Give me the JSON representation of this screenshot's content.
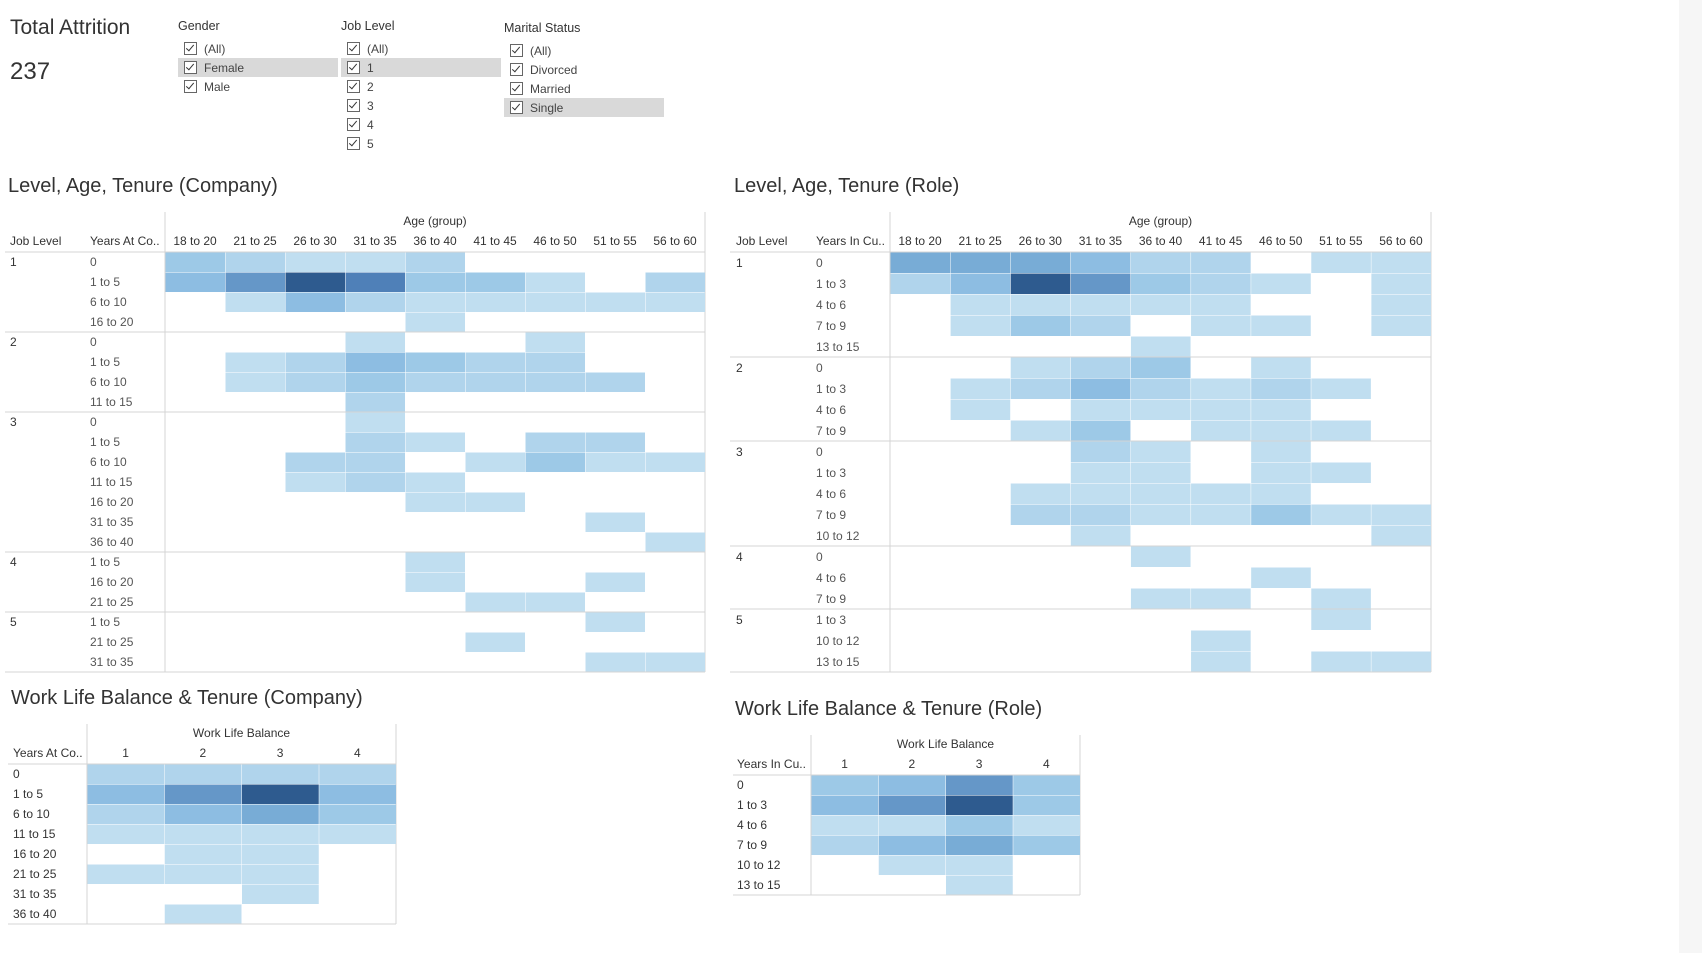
{
  "kpi": {
    "title": "Total Attrition",
    "value": "237"
  },
  "filters": {
    "gender": {
      "title": "Gender",
      "items": [
        {
          "label": "(All)",
          "highlighted": false
        },
        {
          "label": "Female",
          "highlighted": true
        },
        {
          "label": "Male",
          "highlighted": false
        }
      ]
    },
    "job_level": {
      "title": "Job Level",
      "items": [
        {
          "label": "(All)",
          "highlighted": false
        },
        {
          "label": "1",
          "highlighted": true
        },
        {
          "label": "2",
          "highlighted": false
        },
        {
          "label": "3",
          "highlighted": false
        },
        {
          "label": "4",
          "highlighted": false
        },
        {
          "label": "5",
          "highlighted": false
        }
      ]
    },
    "marital": {
      "title": "Marital Status",
      "items": [
        {
          "label": "(All)",
          "highlighted": false
        },
        {
          "label": "Divorced",
          "highlighted": false
        },
        {
          "label": "Married",
          "highlighted": false
        },
        {
          "label": "Single",
          "highlighted": true
        }
      ]
    }
  },
  "titles": {
    "company": "Level, Age, Tenure (Company)",
    "role": "Level, Age, Tenure (Role)",
    "wlb_company": "Work Life Balance & Tenure (Company)",
    "wlb_role": "Work Life Balance & Tenure (Role)"
  },
  "colors": {
    "scale": [
      "#c0def0",
      "#b0d4ec",
      "#9dc9e7",
      "#8dbde2",
      "#78acd6",
      "#6597c8",
      "#4f80b8",
      "#2e5b8f"
    ],
    "divider": "#d4d4d4"
  },
  "chart_data": [
    {
      "type": "heatmap",
      "title": "Level, Age, Tenure (Company)",
      "row_headers": [
        "Job Level",
        "Years At Co.."
      ],
      "col_header": "Age (group)",
      "columns": [
        "18 to 20",
        "21 to 25",
        "26 to 30",
        "31 to 35",
        "36 to 40",
        "41 to 45",
        "46 to 50",
        "51 to 55",
        "56 to 60"
      ],
      "groups": [
        {
          "label": "1",
          "rows": [
            {
              "label": "0",
              "values": [
                3,
                2,
                1,
                1,
                2,
                0,
                0,
                0,
                0
              ]
            },
            {
              "label": "1 to 5",
              "values": [
                4,
                6,
                8,
                7,
                3,
                3,
                1,
                0,
                2
              ]
            },
            {
              "label": "6 to 10",
              "values": [
                0,
                1,
                4,
                2,
                1,
                1,
                1,
                1,
                1
              ]
            },
            {
              "label": "16 to 20",
              "values": [
                0,
                0,
                0,
                0,
                1,
                0,
                0,
                0,
                0
              ]
            }
          ]
        },
        {
          "label": "2",
          "rows": [
            {
              "label": "0",
              "values": [
                0,
                0,
                0,
                1,
                0,
                0,
                1,
                0,
                0
              ]
            },
            {
              "label": "1 to 5",
              "values": [
                0,
                1,
                2,
                4,
                3,
                2,
                2,
                0,
                0
              ]
            },
            {
              "label": "6 to 10",
              "values": [
                0,
                1,
                2,
                3,
                2,
                2,
                2,
                2,
                0
              ]
            },
            {
              "label": "11 to 15",
              "values": [
                0,
                0,
                0,
                2,
                0,
                0,
                0,
                0,
                0
              ]
            }
          ]
        },
        {
          "label": "3",
          "rows": [
            {
              "label": "0",
              "values": [
                0,
                0,
                0,
                1,
                0,
                0,
                0,
                0,
                0
              ]
            },
            {
              "label": "1 to 5",
              "values": [
                0,
                0,
                0,
                2,
                1,
                0,
                2,
                2,
                0
              ]
            },
            {
              "label": "6 to 10",
              "values": [
                0,
                0,
                2,
                2,
                0,
                1,
                3,
                1,
                1
              ]
            },
            {
              "label": "11 to 15",
              "values": [
                0,
                0,
                1,
                2,
                1,
                0,
                0,
                0,
                0
              ]
            },
            {
              "label": "16 to 20",
              "values": [
                0,
                0,
                0,
                0,
                1,
                1,
                0,
                0,
                0
              ]
            },
            {
              "label": "31 to 35",
              "values": [
                0,
                0,
                0,
                0,
                0,
                0,
                0,
                1,
                0
              ]
            },
            {
              "label": "36 to 40",
              "values": [
                0,
                0,
                0,
                0,
                0,
                0,
                0,
                0,
                1
              ]
            }
          ]
        },
        {
          "label": "4",
          "rows": [
            {
              "label": "1 to 5",
              "values": [
                0,
                0,
                0,
                0,
                1,
                0,
                0,
                0,
                0
              ]
            },
            {
              "label": "16 to 20",
              "values": [
                0,
                0,
                0,
                0,
                1,
                0,
                0,
                1,
                0
              ]
            },
            {
              "label": "21 to 25",
              "values": [
                0,
                0,
                0,
                0,
                0,
                1,
                1,
                0,
                0
              ]
            }
          ]
        },
        {
          "label": "5",
          "rows": [
            {
              "label": "1 to 5",
              "values": [
                0,
                0,
                0,
                0,
                0,
                0,
                0,
                1,
                0
              ]
            },
            {
              "label": "21 to 25",
              "values": [
                0,
                0,
                0,
                0,
                0,
                1,
                0,
                0,
                0
              ]
            },
            {
              "label": "31 to 35",
              "values": [
                0,
                0,
                0,
                0,
                0,
                0,
                0,
                1,
                1
              ]
            }
          ]
        }
      ]
    },
    {
      "type": "heatmap",
      "title": "Level, Age, Tenure (Role)",
      "row_headers": [
        "Job Level",
        "Years In Cu.."
      ],
      "col_header": "Age (group)",
      "columns": [
        "18 to 20",
        "21 to 25",
        "26 to 30",
        "31 to 35",
        "36 to 40",
        "41 to 45",
        "46 to 50",
        "51 to 55",
        "56 to 60"
      ],
      "groups": [
        {
          "label": "1",
          "rows": [
            {
              "label": "0",
              "values": [
                5,
                5,
                5,
                4,
                2,
                2,
                0,
                1,
                1
              ]
            },
            {
              "label": "1 to 3",
              "values": [
                2,
                4,
                8,
                6,
                3,
                2,
                1,
                0,
                1
              ]
            },
            {
              "label": "4 to 6",
              "values": [
                0,
                1,
                1,
                1,
                1,
                1,
                0,
                0,
                1
              ]
            },
            {
              "label": "7 to 9",
              "values": [
                0,
                1,
                3,
                2,
                0,
                1,
                1,
                0,
                1
              ]
            },
            {
              "label": "13 to 15",
              "values": [
                0,
                0,
                0,
                0,
                1,
                0,
                0,
                0,
                0
              ]
            }
          ]
        },
        {
          "label": "2",
          "rows": [
            {
              "label": "0",
              "values": [
                0,
                0,
                1,
                2,
                3,
                0,
                1,
                0,
                0
              ]
            },
            {
              "label": "1 to 3",
              "values": [
                0,
                1,
                2,
                4,
                2,
                1,
                2,
                1,
                0
              ]
            },
            {
              "label": "4 to 6",
              "values": [
                0,
                1,
                0,
                1,
                1,
                1,
                1,
                0,
                0
              ]
            },
            {
              "label": "7 to 9",
              "values": [
                0,
                0,
                1,
                3,
                0,
                1,
                1,
                1,
                0
              ]
            }
          ]
        },
        {
          "label": "3",
          "rows": [
            {
              "label": "0",
              "values": [
                0,
                0,
                0,
                2,
                1,
                0,
                1,
                0,
                0
              ]
            },
            {
              "label": "1 to 3",
              "values": [
                0,
                0,
                0,
                1,
                1,
                0,
                1,
                1,
                0
              ]
            },
            {
              "label": "4 to 6",
              "values": [
                0,
                0,
                1,
                1,
                1,
                1,
                1,
                0,
                0
              ]
            },
            {
              "label": "7 to 9",
              "values": [
                0,
                0,
                2,
                2,
                1,
                1,
                3,
                1,
                1
              ]
            },
            {
              "label": "10 to 12",
              "values": [
                0,
                0,
                0,
                1,
                0,
                0,
                0,
                0,
                1
              ]
            }
          ]
        },
        {
          "label": "4",
          "rows": [
            {
              "label": "0",
              "values": [
                0,
                0,
                0,
                0,
                1,
                0,
                0,
                0,
                0
              ]
            },
            {
              "label": "4 to 6",
              "values": [
                0,
                0,
                0,
                0,
                0,
                0,
                1,
                0,
                0
              ]
            },
            {
              "label": "7 to 9",
              "values": [
                0,
                0,
                0,
                0,
                1,
                1,
                0,
                1,
                0
              ]
            }
          ]
        },
        {
          "label": "5",
          "rows": [
            {
              "label": "1 to 3",
              "values": [
                0,
                0,
                0,
                0,
                0,
                0,
                0,
                1,
                0
              ]
            },
            {
              "label": "10 to 12",
              "values": [
                0,
                0,
                0,
                0,
                0,
                1,
                0,
                0,
                0
              ]
            },
            {
              "label": "13 to 15",
              "values": [
                0,
                0,
                0,
                0,
                0,
                1,
                0,
                1,
                1
              ]
            }
          ]
        }
      ]
    },
    {
      "type": "heatmap",
      "title": "Work Life Balance & Tenure (Company)",
      "row_headers": [
        "Years At Co.."
      ],
      "col_header": "Work Life Balance",
      "columns": [
        "1",
        "2",
        "3",
        "4"
      ],
      "groups": [
        {
          "label": "",
          "rows": [
            {
              "label": "0",
              "values": [
                2,
                2,
                2,
                2
              ]
            },
            {
              "label": "1 to 5",
              "values": [
                4,
                6,
                8,
                4
              ]
            },
            {
              "label": "6 to 10",
              "values": [
                2,
                4,
                5,
                3
              ]
            },
            {
              "label": "11 to 15",
              "values": [
                1,
                1,
                1,
                1
              ]
            },
            {
              "label": "16 to 20",
              "values": [
                0,
                1,
                1,
                0
              ]
            },
            {
              "label": "21 to 25",
              "values": [
                1,
                1,
                1,
                0
              ]
            },
            {
              "label": "31 to 35",
              "values": [
                0,
                0,
                1,
                0
              ]
            },
            {
              "label": "36 to 40",
              "values": [
                0,
                1,
                0,
                0
              ]
            }
          ]
        }
      ]
    },
    {
      "type": "heatmap",
      "title": "Work Life Balance & Tenure (Role)",
      "row_headers": [
        "Years In Cu.."
      ],
      "col_header": "Work Life Balance",
      "columns": [
        "1",
        "2",
        "3",
        "4"
      ],
      "groups": [
        {
          "label": "",
          "rows": [
            {
              "label": "0",
              "values": [
                3,
                4,
                6,
                3
              ]
            },
            {
              "label": "1 to 3",
              "values": [
                4,
                6,
                8,
                3
              ]
            },
            {
              "label": "4 to 6",
              "values": [
                1,
                1,
                3,
                1
              ]
            },
            {
              "label": "7 to 9",
              "values": [
                2,
                4,
                5,
                3
              ]
            },
            {
              "label": "10 to 12",
              "values": [
                0,
                1,
                1,
                0
              ]
            },
            {
              "label": "13 to 15",
              "values": [
                0,
                0,
                1,
                0
              ]
            }
          ]
        }
      ]
    }
  ]
}
